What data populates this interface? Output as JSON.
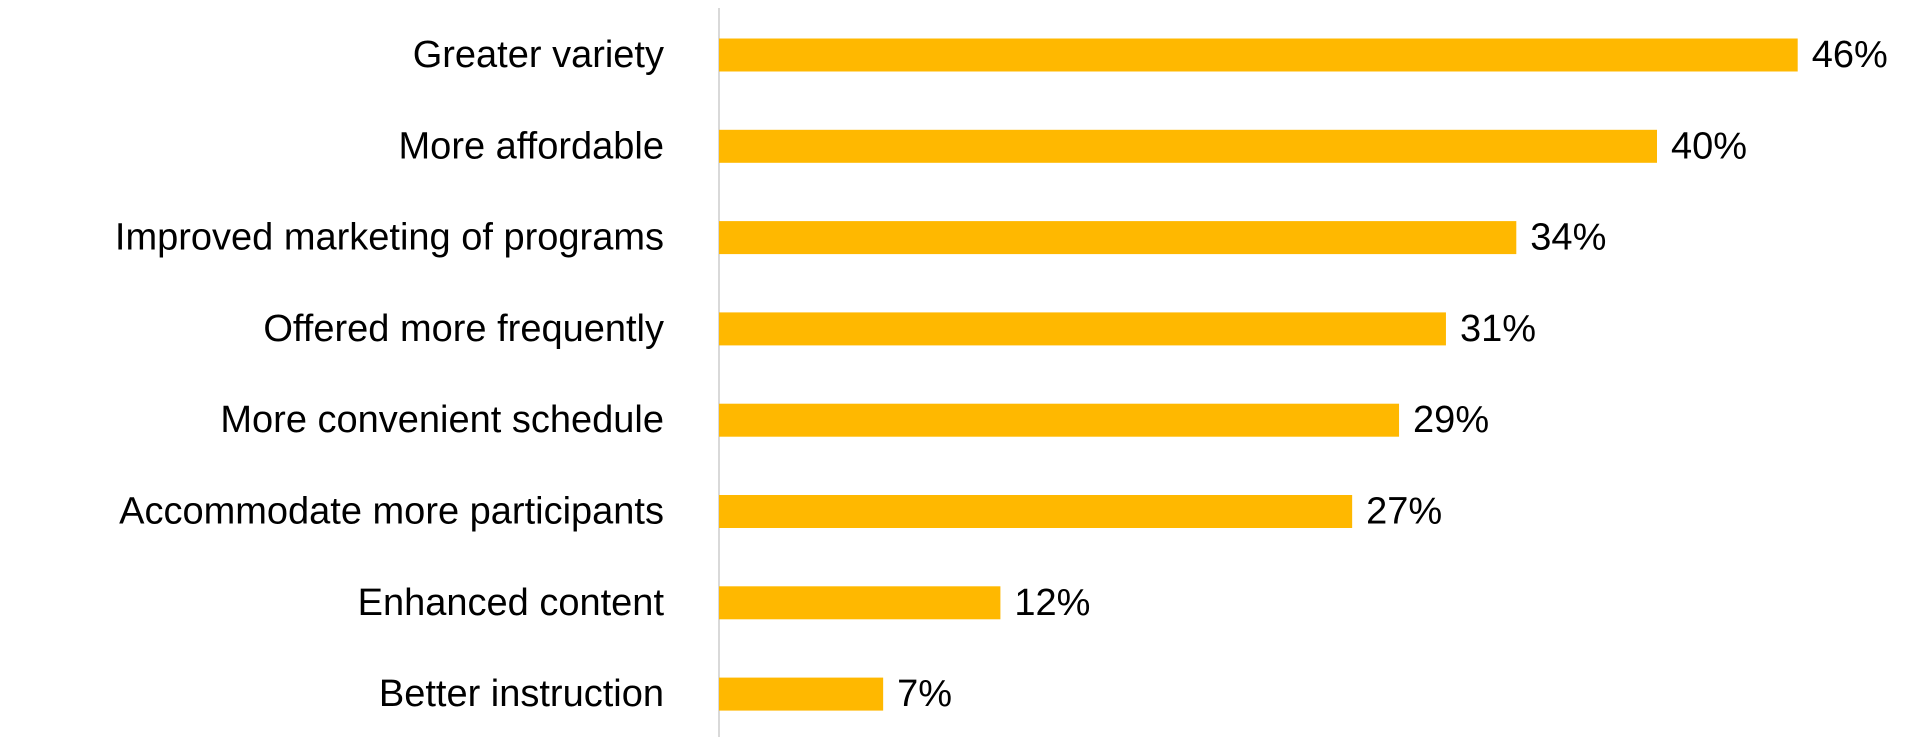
{
  "chart_data": {
    "type": "bar",
    "orientation": "horizontal",
    "categories": [
      "Greater variety",
      "More affordable",
      "Improved marketing of programs",
      "Offered more frequently",
      "More convenient schedule",
      "Accommodate more participants",
      "Enhanced content",
      "Better instruction"
    ],
    "values": [
      46,
      40,
      34,
      31,
      29,
      27,
      12,
      7
    ],
    "value_labels": [
      "46%",
      "40%",
      "34%",
      "31%",
      "29%",
      "27%",
      "12%",
      "7%"
    ],
    "unit": "%",
    "xlim": [
      0,
      50
    ],
    "grid": false,
    "legend": "none",
    "colors": {
      "bar": "#FFB800",
      "axis": "#D9D9D9",
      "text": "#000000"
    }
  }
}
